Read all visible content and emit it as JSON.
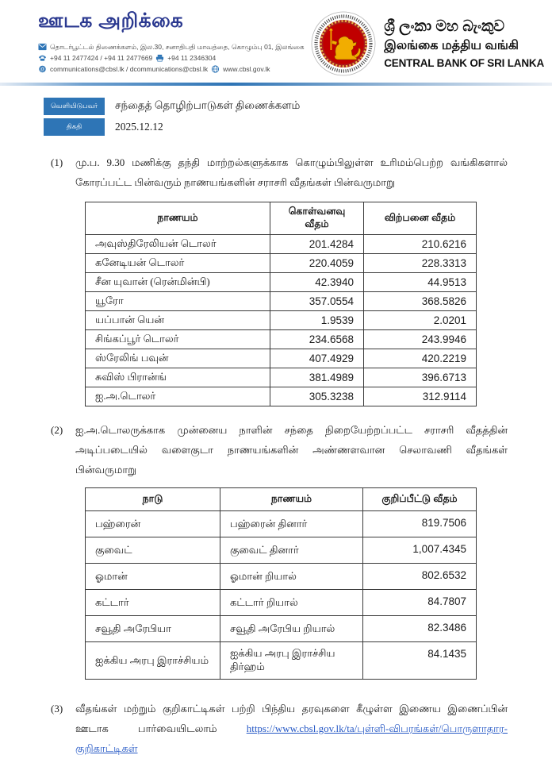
{
  "header": {
    "press_release_title": "ஊடக அறிக்கை",
    "contact": {
      "address": "தொடர்பூட்டல் திணைக்களம், இல.30, சனாதிபதி மாவத்தை, கொழும்பு 01, இலங்கை",
      "phones": "+94 11 2477424 / +94 11 2477669",
      "fax": "+94 11  2346304",
      "emails": "communications@cbsl.lk / dcommunications@cbsl.lk",
      "website": "www.cbsl.gov.lk"
    },
    "bank_name_sinhala": "ශ්‍රී ලංකා මහ බැංකුව",
    "bank_name_tamil": "இலங்கை மத்திய வங்கி",
    "bank_name_english": "CENTRAL BANK OF SRI LANKA",
    "icons": {
      "mail": "envelope-icon",
      "phone": "telephone-icon",
      "fax": "printer-icon",
      "email": "at-circle-icon",
      "web": "globe-icon",
      "seal": "cbsl-lion-seal"
    }
  },
  "meta": {
    "issued_by_label": "வெளியிடுபவர்",
    "issued_by_value": "சந்தைத் தொழிற்பாடுகள் திணைக்களம்",
    "date_label": "திகதி",
    "date_value": "2025.12.12"
  },
  "sections": {
    "para1_no": "(1)",
    "para1": "மு.ப. 9.30 மணிக்கு தந்தி மாற்றல்களுக்காக கொழும்பிலுள்ள உரிமம்பெற்ற வங்கிகளால் கோரப்பட்ட பின்வரும் நாணயங்களின் சராசரி வீதங்கள் பின்வருமாறு",
    "para2_no": "(2)",
    "para2": "ஐ.அ.டொலருக்காக முன்னைய நாளின் சந்தை நிறையேற்றப்பட்ட சராசரி வீதத்தின் அடிப்படையில் வளைகுடா நாணயங்களின் அண்ணளவான செலாவணி வீதங்கள் பின்வருமாறு",
    "para3_no": "(3)",
    "para3_text": "வீதங்கள் மற்றும் குறிகாட்டிகள் பற்றி பிந்திய தரவுகளை கீழுள்ள இணைய இணைப்பின் ஊடாக பார்வையிடலாம்",
    "para3_link": "https://www.cbsl.gov.lk/ta/புள்ளி-விபரங்கள்/பொருளாதார-குறிகாட்டிகள்"
  },
  "exchange_table": {
    "headers": [
      "நாணயம்",
      "கொள்வனவு  வீதம்",
      "விற்பனை  வீதம்"
    ],
    "rows": [
      [
        "அவுஸ்திரேலியன்  டொலர்",
        "201.4284",
        "210.6216"
      ],
      [
        "கனேடியன்  டொலர்",
        "220.4059",
        "228.3313"
      ],
      [
        "சீன  யுவான்  (ரென்மின்பி)",
        "42.3940",
        "44.9513"
      ],
      [
        "யூரோ",
        "357.0554",
        "368.5826"
      ],
      [
        "யப்பான்  யென்",
        "1.9539",
        "2.0201"
      ],
      [
        "சிங்கப்பூர்  டொலர்",
        "234.6568",
        "243.9946"
      ],
      [
        "ஸ்ரேலிங்  பவுன்",
        "407.4929",
        "420.2219"
      ],
      [
        "சுவிஸ்  பிரான்ங்",
        "381.4989",
        "396.6713"
      ],
      [
        "ஐ.அ.டொலர்",
        "305.3238",
        "312.9114"
      ]
    ]
  },
  "gulf_table": {
    "headers": [
      "நாடு",
      "நாணயம்",
      "குறிப்பீட்டு  வீதம்"
    ],
    "rows": [
      [
        "பஹ்ரைன்",
        "பஹ்ரைன்  தினார்",
        "819.7506"
      ],
      [
        "குவைட்",
        "குவைட்  தினார்",
        "1,007.4345"
      ],
      [
        "ஓமான்",
        "ஓமான்  றியால்",
        "802.6532"
      ],
      [
        "கட்டார்",
        "கட்டார்  றியால்",
        "84.7807"
      ],
      [
        "சவூதி  அரேபியா",
        "சவூதி  அரேபிய  றியால்",
        "82.3486"
      ],
      [
        "ஐக்கிய  அரபு  இராச்சியம்",
        "ஐக்கிய  அரபு  இராச்சிய திர்ஹம்",
        "84.1435"
      ]
    ]
  },
  "colors": {
    "title_blue": "#2b3990",
    "accent_blue": "#2e75b6",
    "divider_blue": "#2e74b5",
    "seal_red": "#c00000",
    "seal_gold": "#e8b84b",
    "link_blue": "#2457c5"
  }
}
